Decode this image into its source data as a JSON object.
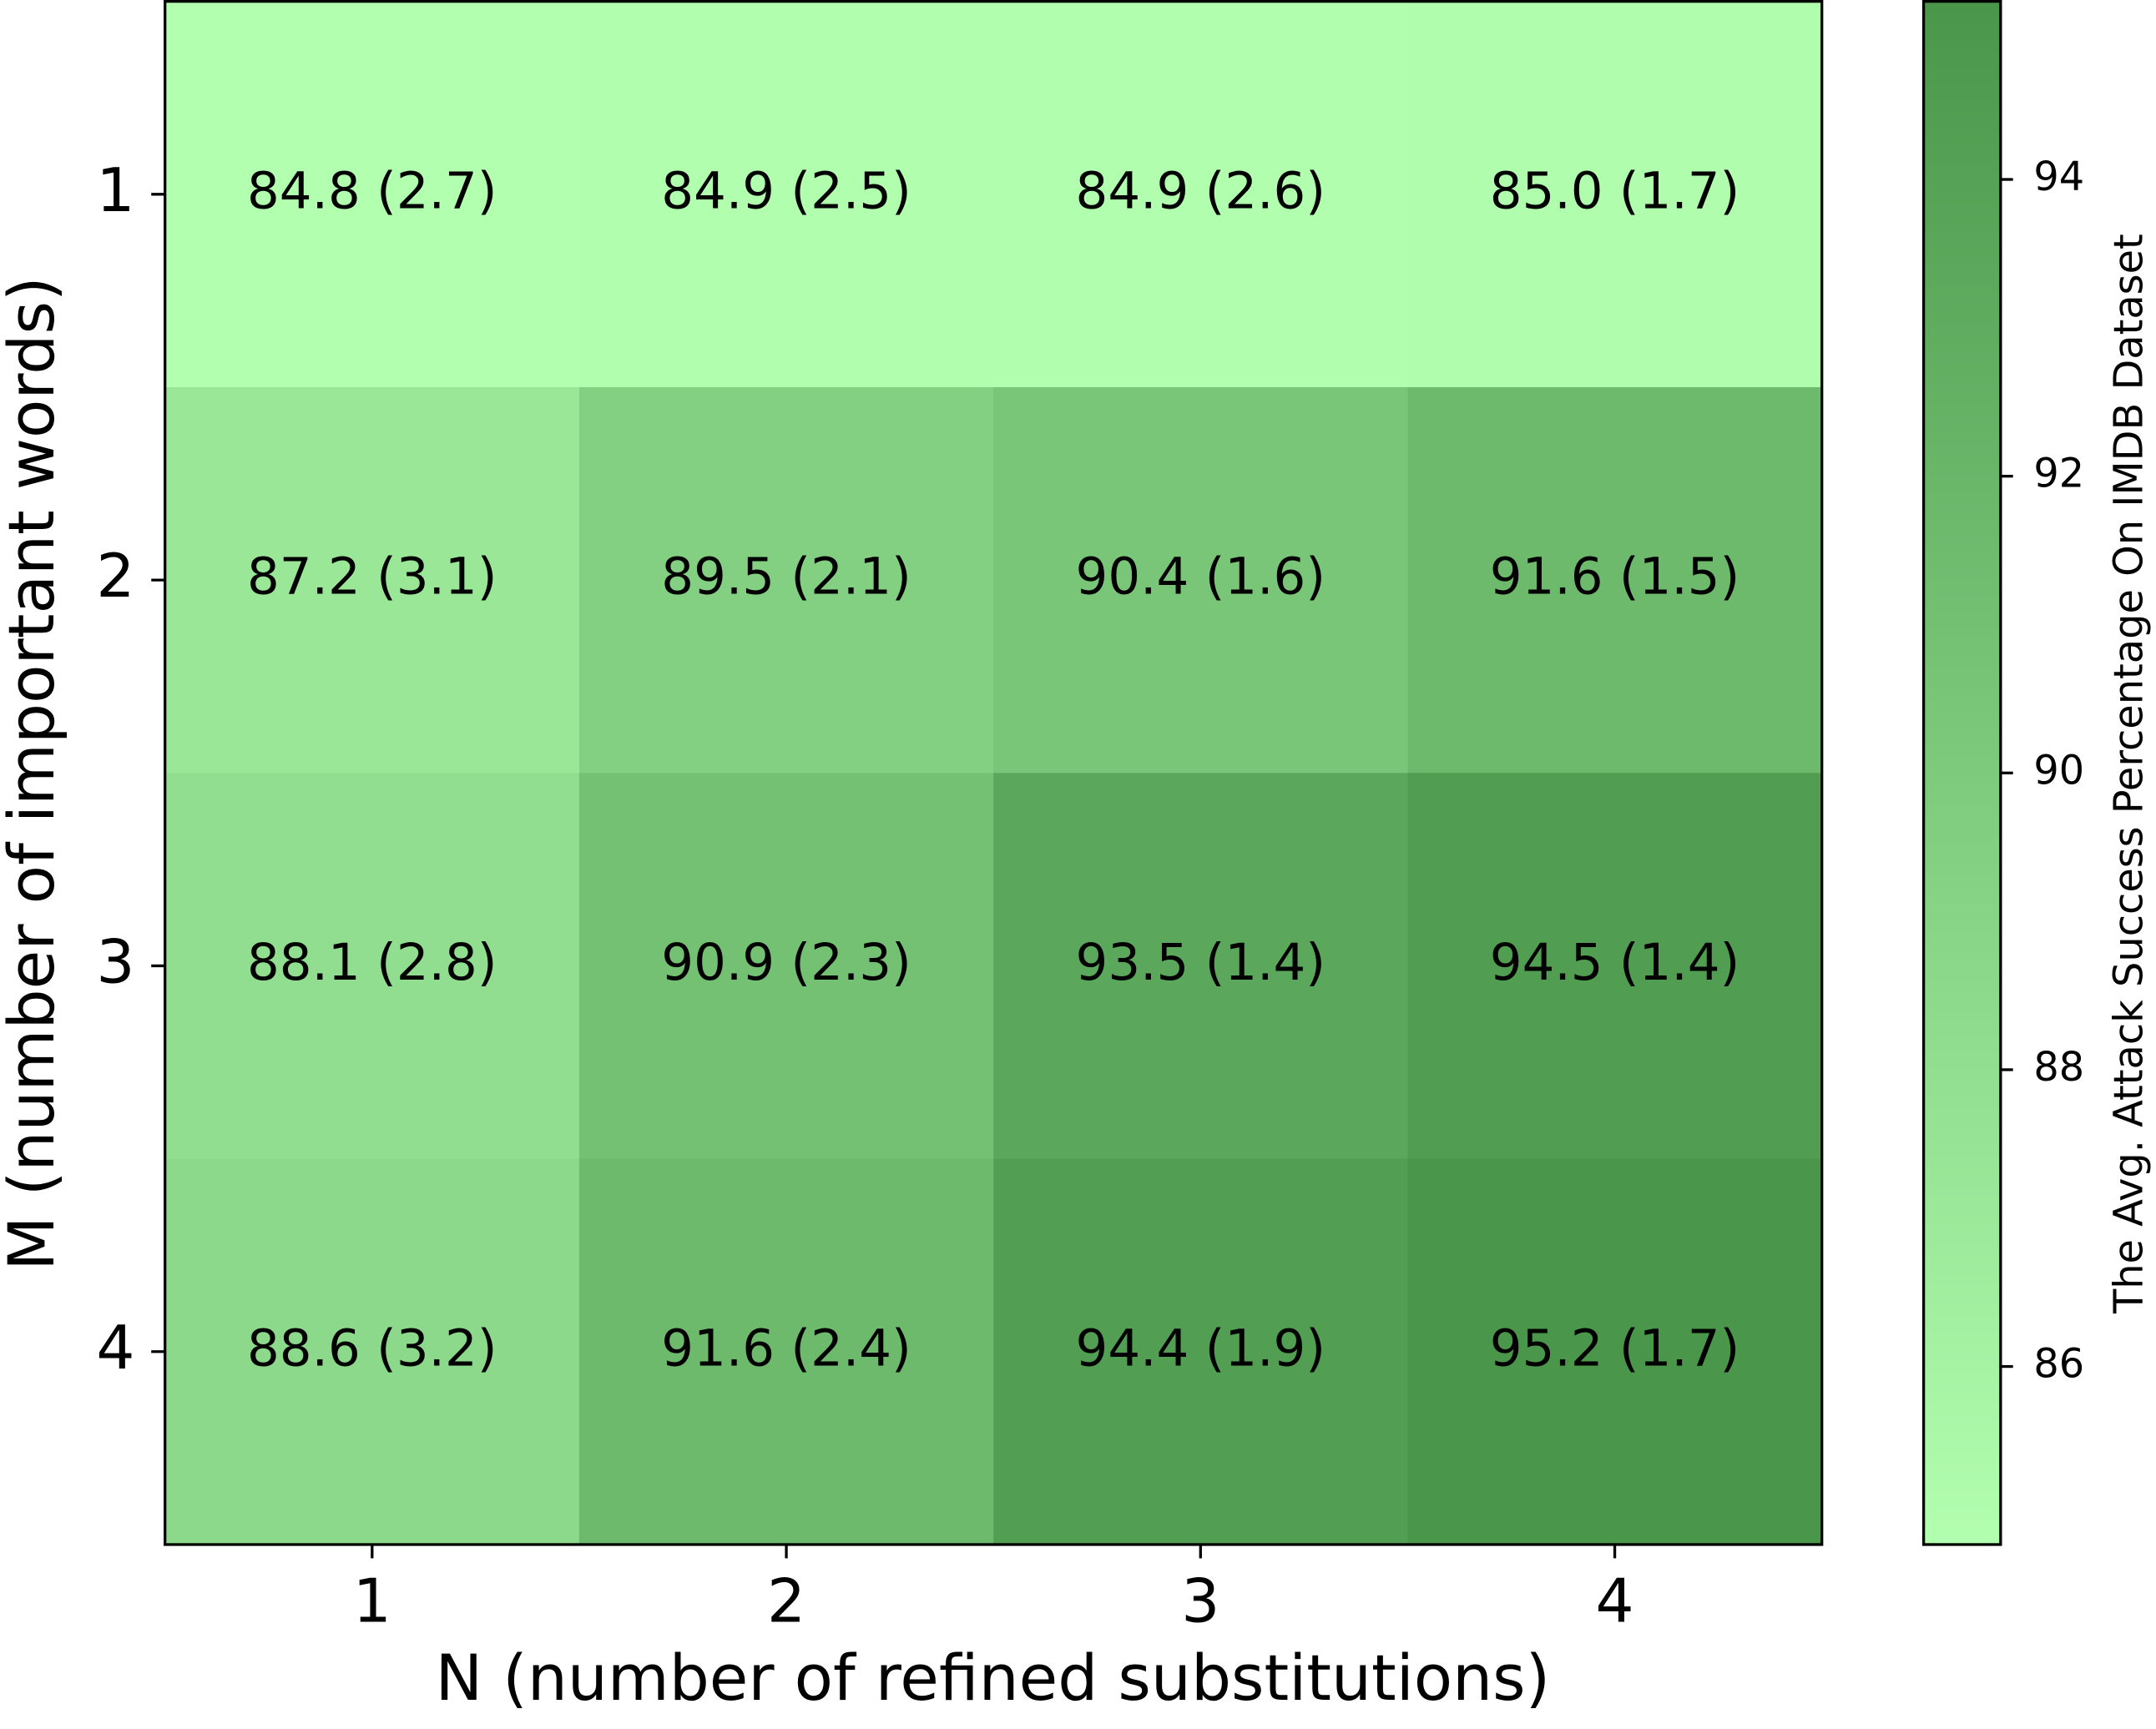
{
  "chart_data": {
    "type": "heatmap",
    "x_label": "N (number of refined substitutions)",
    "y_label": "M (number of important words)",
    "colorbar_label": "The Avg. Attack Success Percentage On IMDB Dataset",
    "x_categories": [
      1,
      2,
      3,
      4
    ],
    "y_categories": [
      1,
      2,
      3,
      4
    ],
    "values": [
      [
        84.8,
        84.9,
        84.9,
        85.0
      ],
      [
        87.2,
        89.5,
        90.4,
        91.6
      ],
      [
        88.1,
        90.9,
        93.5,
        94.5
      ],
      [
        88.6,
        91.6,
        94.4,
        95.2
      ]
    ],
    "errors": [
      [
        2.7,
        2.5,
        2.6,
        1.7
      ],
      [
        3.1,
        2.1,
        1.6,
        1.5
      ],
      [
        2.8,
        2.3,
        1.4,
        1.4
      ],
      [
        3.2,
        2.4,
        1.9,
        1.7
      ]
    ],
    "value_labels": [
      [
        "84.8 (2.7)",
        "84.9 (2.5)",
        "84.9 (2.6)",
        "85.0 (1.7)"
      ],
      [
        "87.2 (3.1)",
        "89.5 (2.1)",
        "90.4 (1.6)",
        "91.6 (1.5)"
      ],
      [
        "88.1 (2.8)",
        "90.9 (2.3)",
        "93.5 (1.4)",
        "94.5 (1.4)"
      ],
      [
        "88.6 (3.2)",
        "91.6 (2.4)",
        "94.4 (1.9)",
        "95.2 (1.7)"
      ]
    ],
    "colors": [
      "#b3ffb0",
      "#4a964a"
    ],
    "clim": [
      84.8,
      95.2
    ],
    "cticks": [
      86,
      88,
      90,
      92,
      94
    ]
  }
}
